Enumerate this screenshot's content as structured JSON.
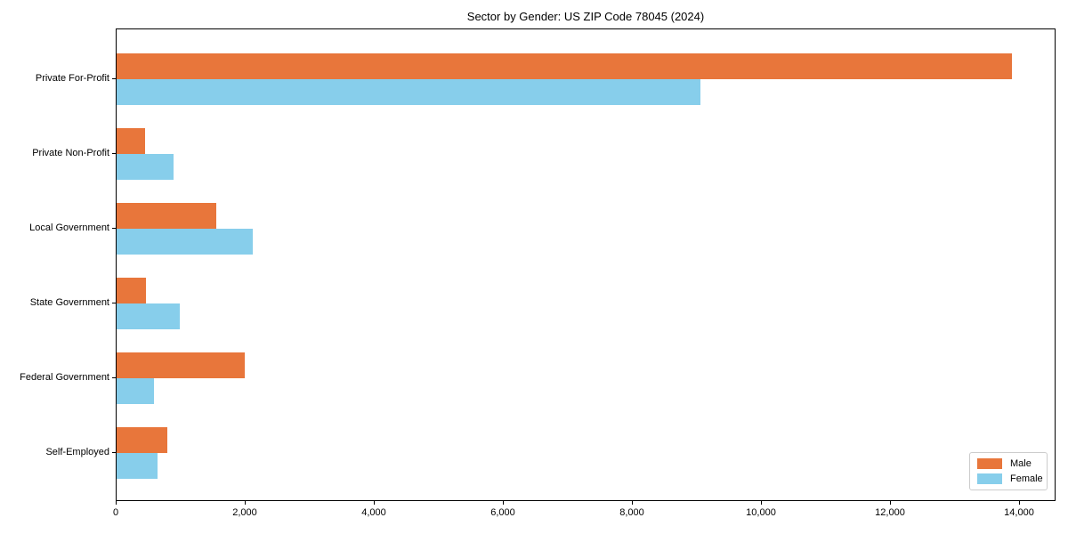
{
  "chart_data": {
    "type": "bar",
    "orientation": "horizontal",
    "title": "Sector by Gender: US ZIP Code 78045 (2024)",
    "categories": [
      "Private For-Profit",
      "Private Non-Profit",
      "Local Government",
      "State Government",
      "Federal Government",
      "Self-Employed"
    ],
    "series": [
      {
        "name": "Male",
        "color": "#E8763B",
        "values": [
          13870,
          440,
          1550,
          460,
          1990,
          780
        ]
      },
      {
        "name": "Female",
        "color": "#87CEEB",
        "values": [
          9050,
          880,
          2110,
          980,
          580,
          630
        ]
      }
    ],
    "xlabel": "",
    "ylabel": "",
    "xlim": [
      0,
      14565
    ],
    "x_ticks": [
      0,
      2000,
      4000,
      6000,
      8000,
      10000,
      12000,
      14000
    ],
    "x_tick_labels": [
      "0",
      "2,000",
      "4,000",
      "6,000",
      "8,000",
      "10,000",
      "12,000",
      "14,000"
    ],
    "grid": false,
    "legend": {
      "position": "lower right",
      "entries": [
        "Male",
        "Female"
      ]
    },
    "colors": {
      "axis": "#000000",
      "background": "#ffffff",
      "legend_border": "#cccccc"
    }
  }
}
